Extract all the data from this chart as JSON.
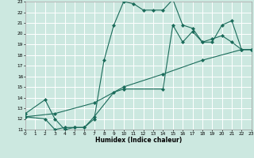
{
  "xlabel": "Humidex (Indice chaleur)",
  "xlim": [
    0,
    23
  ],
  "ylim": [
    11,
    23
  ],
  "xticks": [
    0,
    1,
    2,
    3,
    4,
    5,
    6,
    7,
    8,
    9,
    10,
    11,
    12,
    13,
    14,
    15,
    16,
    17,
    18,
    19,
    20,
    21,
    22,
    23
  ],
  "yticks": [
    11,
    12,
    13,
    14,
    15,
    16,
    17,
    18,
    19,
    20,
    21,
    22,
    23
  ],
  "line_color": "#1a6b5a",
  "bg_color": "#cce8e0",
  "grid_color": "#ffffff",
  "line1_x": [
    0,
    2,
    3,
    4,
    5,
    6,
    7,
    8,
    9,
    10,
    11,
    12,
    13,
    14,
    15,
    16,
    17,
    18,
    19,
    20,
    21,
    22,
    23
  ],
  "line1_y": [
    12.5,
    13.8,
    12.0,
    11.0,
    11.2,
    11.2,
    12.0,
    17.5,
    20.8,
    23.0,
    22.8,
    22.2,
    22.2,
    22.2,
    23.2,
    20.8,
    20.5,
    19.2,
    19.5,
    19.8,
    19.2,
    18.5,
    18.5
  ],
  "line2_x": [
    0,
    2,
    3,
    4,
    5,
    6,
    7,
    9,
    10,
    14,
    15,
    16,
    17,
    18,
    19,
    20,
    21,
    22,
    23
  ],
  "line2_y": [
    12.2,
    12.0,
    11.0,
    11.2,
    11.2,
    11.2,
    12.2,
    14.5,
    14.8,
    14.8,
    20.8,
    19.2,
    20.2,
    19.2,
    19.2,
    20.8,
    21.2,
    18.5,
    18.5
  ],
  "line3_x": [
    0,
    3,
    7,
    10,
    14,
    18,
    22,
    23
  ],
  "line3_y": [
    12.2,
    12.5,
    13.5,
    15.0,
    16.2,
    17.5,
    18.5,
    18.5
  ]
}
